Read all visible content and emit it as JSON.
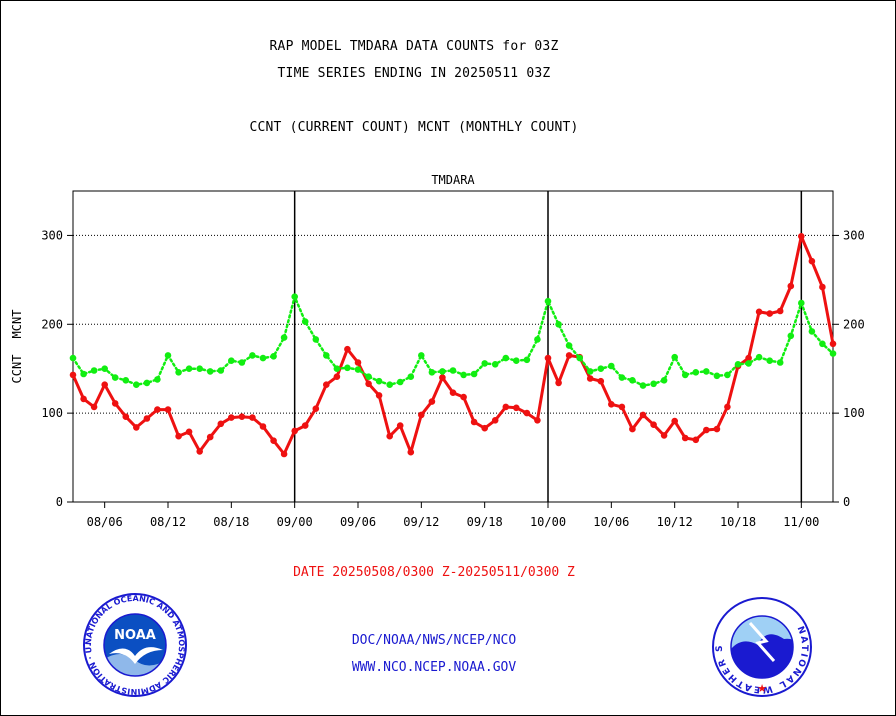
{
  "header": {
    "title_line1": "RAP MODEL TMDARA DATA COUNTS for 03Z",
    "title_line2": "TIME SERIES ENDING IN 20250511 03Z",
    "subtitle": "CCNT (CURRENT COUNT) MCNT (MONTHLY COUNT)"
  },
  "footer": {
    "date_range": "DATE 20250508/0300 Z-20250511/0300 Z",
    "agency": "DOC/NOAA/NWS/NCEP/NCO",
    "website": "WWW.NCO.NCEP.NOAA.GOV"
  },
  "logos": {
    "noaa": "NOAA",
    "noaa_ring": "NATIONAL OCEANIC AND ATMOSPHERIC ADMINISTRATION · U.S. DEPARTMENT OF COMMERCE ·",
    "nws_ring": "NATIONAL WEATHER SERVICE"
  },
  "colors": {
    "ccnt": "#ee1111",
    "mcnt": "#11ee11",
    "label_blue": "#1a1ad0"
  },
  "chart_data": {
    "type": "line",
    "plot_label": "TMDARA",
    "ylabel_left": [
      "CCNT",
      "MCNT"
    ],
    "ylim": [
      0,
      350
    ],
    "yticks": [
      0,
      100,
      200,
      300
    ],
    "xlim": [
      0,
      72
    ],
    "x_tick_labels": [
      "08/06",
      "08/12",
      "08/18",
      "09/00",
      "09/06",
      "09/12",
      "09/18",
      "10/00",
      "10/06",
      "10/12",
      "10/18",
      "11/00"
    ],
    "x_tick_positions": [
      3,
      9,
      15,
      21,
      27,
      33,
      39,
      45,
      51,
      57,
      63,
      69
    ],
    "day_boundaries": [
      21,
      45,
      69
    ],
    "gridlines": [
      100,
      200,
      300
    ],
    "series": [
      {
        "name": "CCNT",
        "style": "solid",
        "x": [
          0,
          1,
          2,
          3,
          4,
          5,
          6,
          7,
          8,
          9,
          10,
          11,
          12,
          13,
          14,
          15,
          16,
          17,
          18,
          19,
          20,
          21,
          22,
          23,
          24,
          25,
          26,
          27,
          28,
          29,
          30,
          31,
          32,
          33,
          34,
          35,
          36,
          37,
          38,
          39,
          40,
          41,
          42,
          43,
          44,
          45,
          46,
          47,
          48,
          49,
          50,
          51,
          52,
          53,
          54,
          55,
          56,
          57,
          58,
          59,
          60,
          61,
          62,
          63,
          64,
          65,
          66,
          67,
          68,
          69,
          70,
          71,
          72
        ],
        "values": [
          143,
          116,
          107,
          132,
          111,
          96,
          84,
          94,
          104,
          104,
          74,
          79,
          57,
          73,
          88,
          95,
          96,
          95,
          85,
          69,
          54,
          80,
          86,
          105,
          132,
          141,
          172,
          157,
          133,
          120,
          74,
          86,
          56,
          98,
          113,
          140,
          123,
          118,
          90,
          83,
          92,
          107,
          106,
          100,
          92,
          162,
          134,
          165,
          163,
          139,
          136,
          110,
          107,
          82,
          98,
          87,
          75,
          91,
          72,
          70,
          81,
          82,
          107,
          153,
          162,
          214,
          212,
          215,
          243,
          299,
          271,
          242,
          178
        ]
      },
      {
        "name": "MCNT",
        "style": "dotted",
        "x": [
          0,
          1,
          2,
          3,
          4,
          5,
          6,
          7,
          8,
          9,
          10,
          11,
          12,
          13,
          14,
          15,
          16,
          17,
          18,
          19,
          20,
          21,
          22,
          23,
          24,
          25,
          26,
          27,
          28,
          29,
          30,
          31,
          32,
          33,
          34,
          35,
          36,
          37,
          38,
          39,
          40,
          41,
          42,
          43,
          44,
          45,
          46,
          47,
          48,
          49,
          50,
          51,
          52,
          53,
          54,
          55,
          56,
          57,
          58,
          59,
          60,
          61,
          62,
          63,
          64,
          65,
          66,
          67,
          68,
          69,
          70,
          71,
          72
        ],
        "values": [
          162,
          144,
          148,
          150,
          140,
          137,
          132,
          134,
          138,
          165,
          146,
          150,
          150,
          147,
          148,
          159,
          157,
          165,
          162,
          164,
          185,
          231,
          203,
          183,
          165,
          150,
          151,
          149,
          141,
          136,
          132,
          135,
          141,
          165,
          146,
          147,
          148,
          143,
          144,
          156,
          155,
          162,
          159,
          160,
          183,
          226,
          200,
          176,
          162,
          147,
          150,
          153,
          140,
          137,
          131,
          133,
          137,
          163,
          143,
          146,
          147,
          142,
          143,
          155,
          156,
          163,
          159,
          157,
          187,
          224,
          192,
          178,
          167
        ]
      }
    ]
  }
}
